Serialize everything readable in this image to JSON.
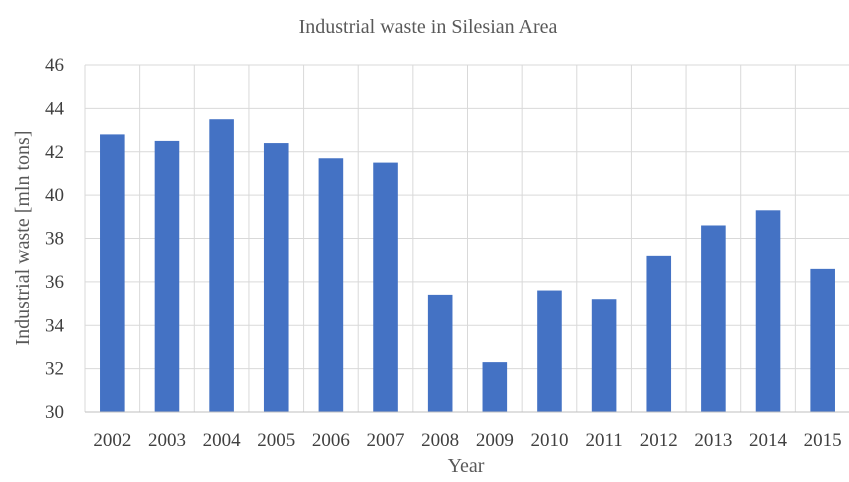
{
  "chart_data": {
    "type": "bar",
    "title": "Industrial waste in Silesian Area",
    "xlabel": "Year",
    "ylabel": "Industrial waste [mln tons]",
    "categories": [
      "2002",
      "2003",
      "2004",
      "2005",
      "2006",
      "2007",
      "2008",
      "2009",
      "2010",
      "2011",
      "2012",
      "2013",
      "2014",
      "2015"
    ],
    "values": [
      42.8,
      42.5,
      43.5,
      42.4,
      41.7,
      41.5,
      35.4,
      32.3,
      35.6,
      35.2,
      37.2,
      38.6,
      39.3,
      36.6
    ],
    "ylim": [
      30,
      46
    ],
    "yticks": [
      30,
      32,
      34,
      36,
      38,
      40,
      42,
      44,
      46
    ],
    "grid": true,
    "legend": "none",
    "bar_color": "#4472c4"
  }
}
